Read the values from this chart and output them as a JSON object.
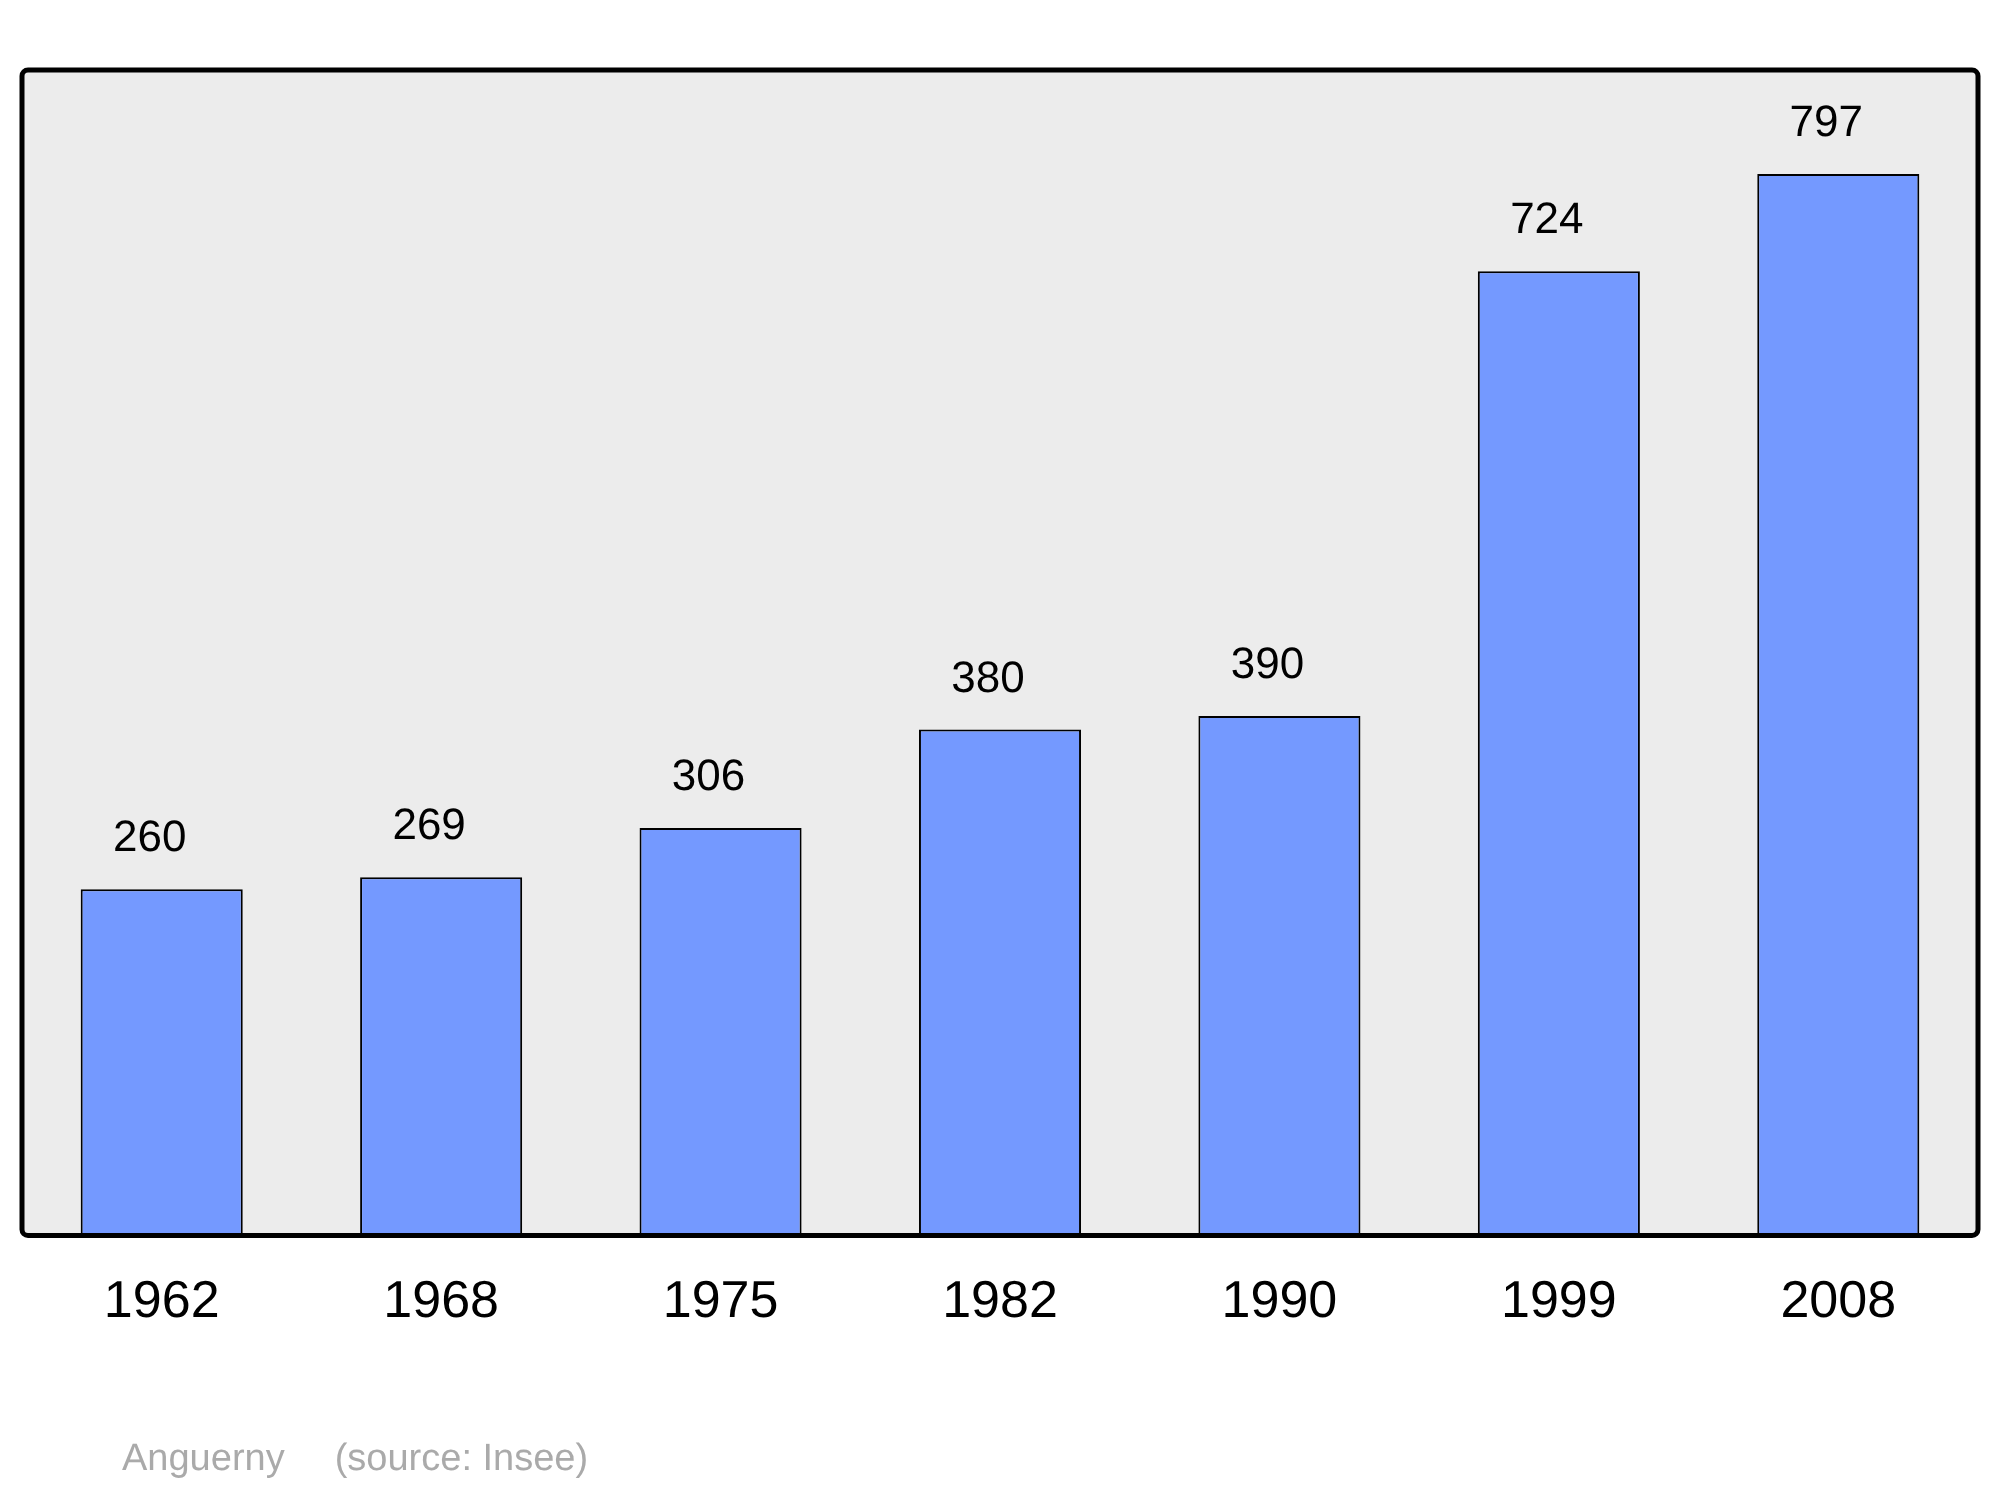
{
  "chart_data": {
    "type": "bar",
    "categories": [
      "1962",
      "1968",
      "1975",
      "1982",
      "1990",
      "1999",
      "2008"
    ],
    "values": [
      260,
      269,
      306,
      380,
      390,
      724,
      797
    ],
    "color": "#7499ff",
    "data_labels": true,
    "ylim": [
      0,
      875
    ],
    "tick_labels": "x",
    "grid": false,
    "legend": false,
    "annotations": [
      "Anguerny",
      "(source: Insee)"
    ]
  }
}
